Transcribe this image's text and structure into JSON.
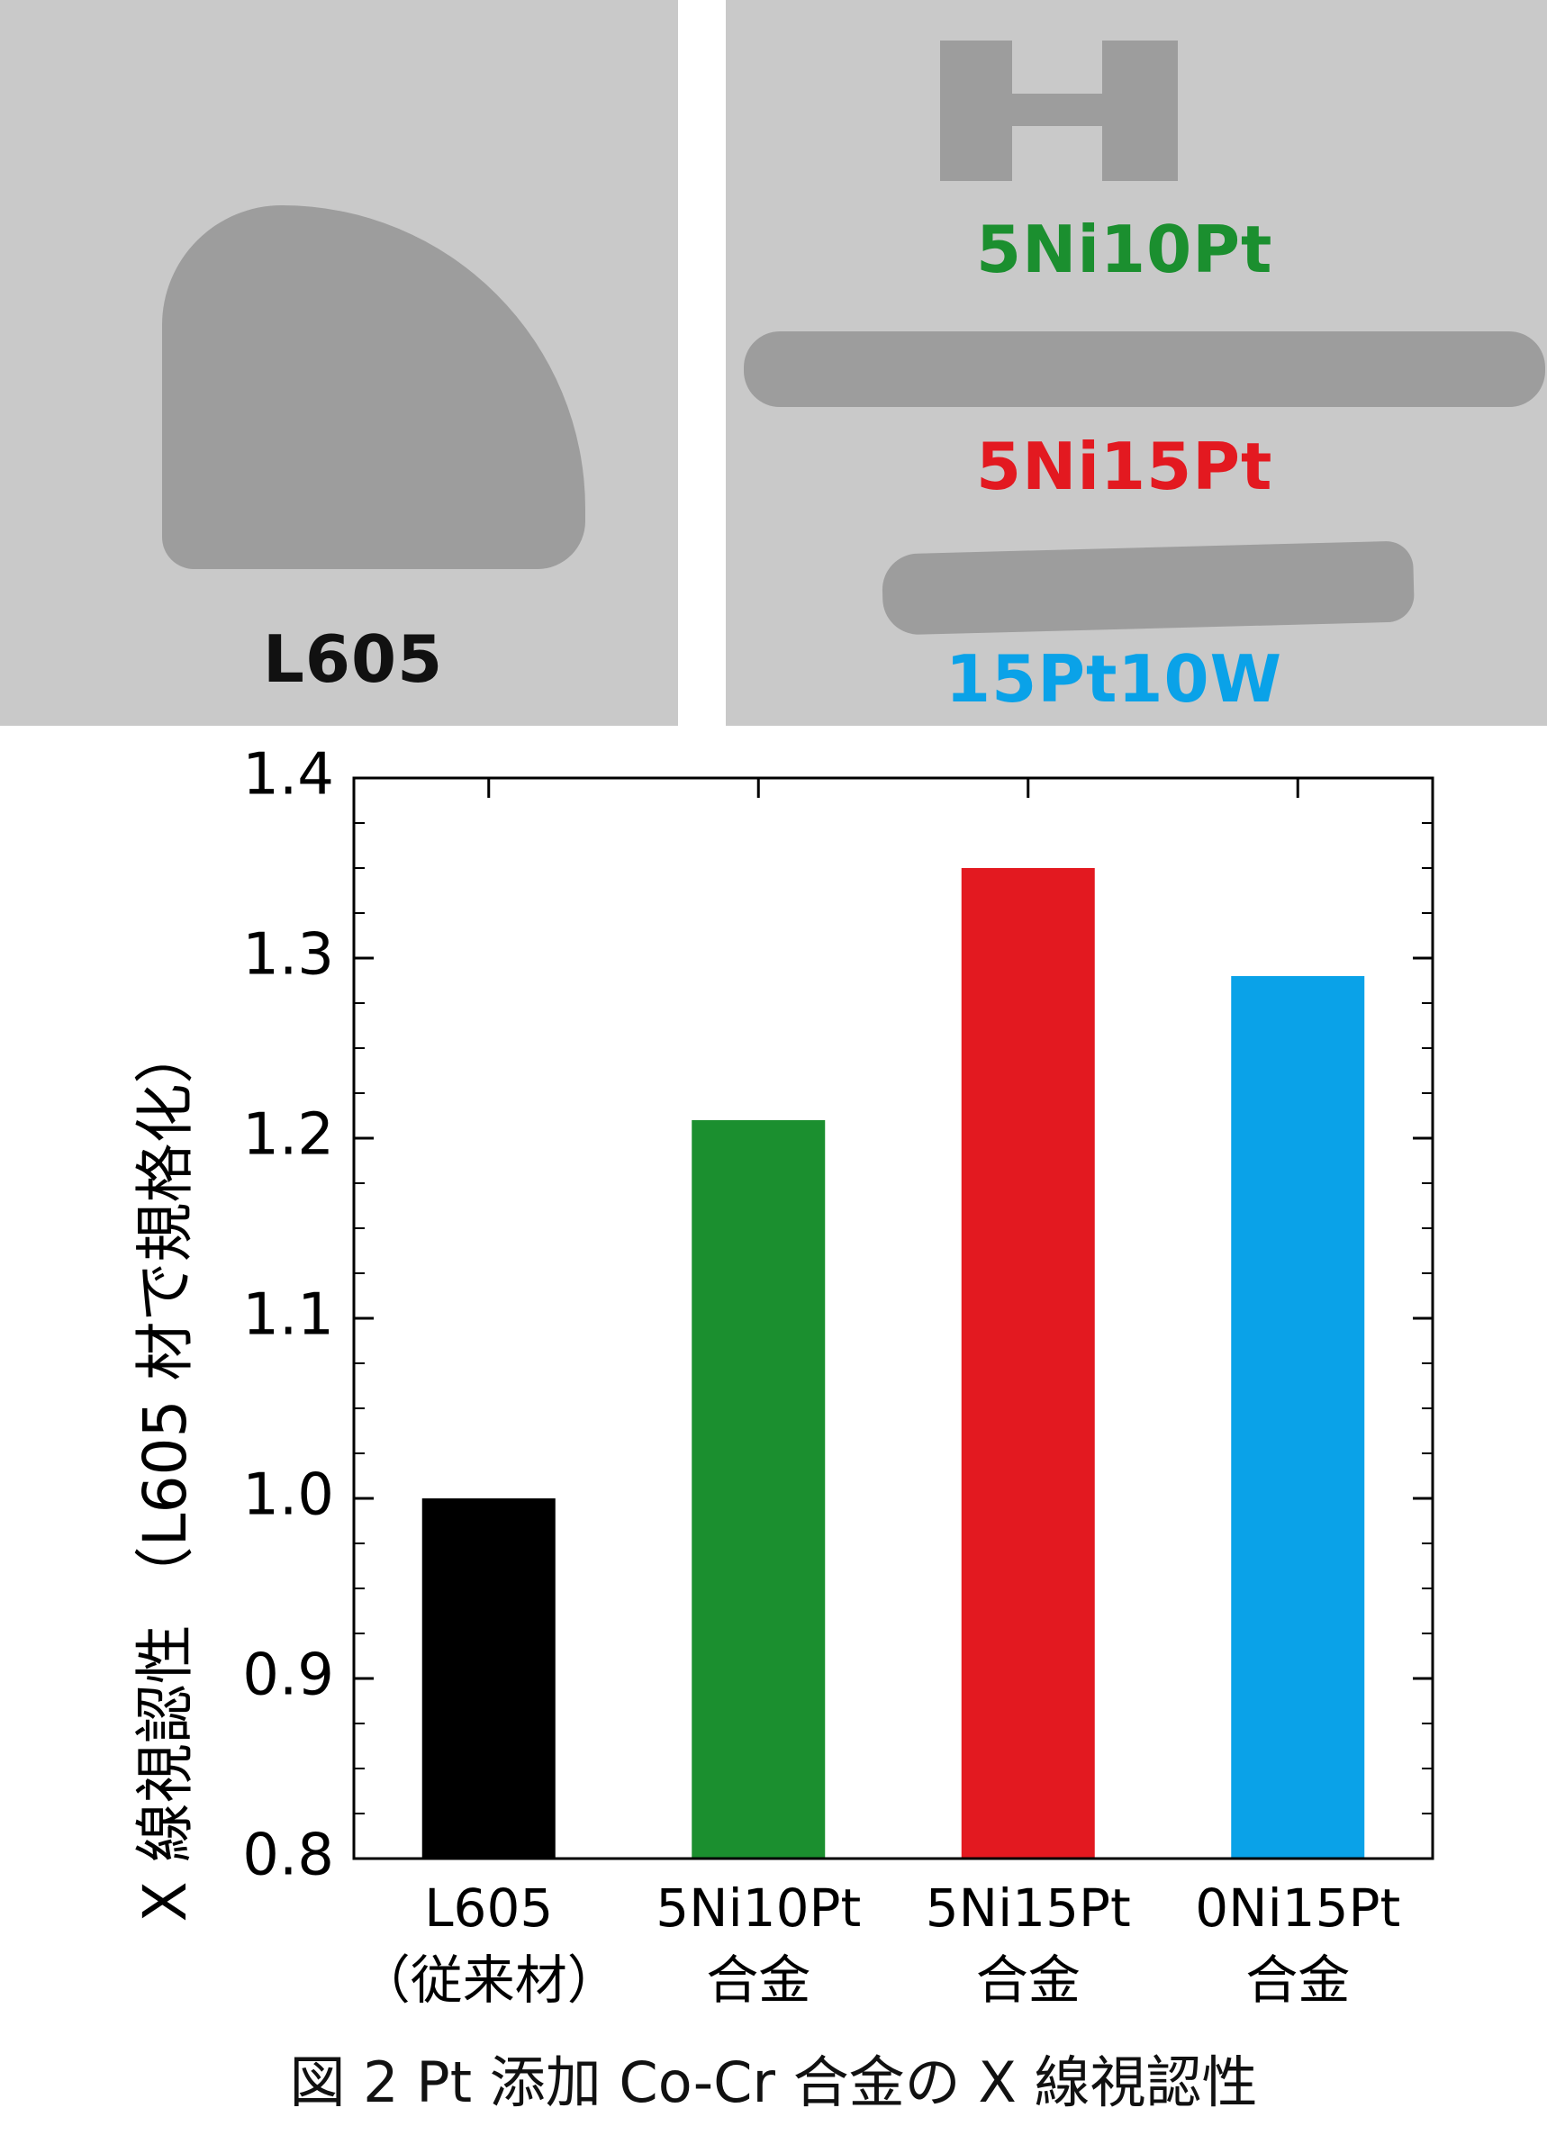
{
  "xray_panels": {
    "left": {
      "label": "L605",
      "label_color": "#111111"
    },
    "right": {
      "labels": [
        {
          "text": "5Ni10Pt",
          "color": "#1b8f2f"
        },
        {
          "text": "5Ni15Pt",
          "color": "#e31920"
        },
        {
          "text": "15Pt10W",
          "color": "#0aa2e8"
        }
      ]
    }
  },
  "caption": "図 2 Pt 添加 Co-Cr 合金の X 線視認性",
  "chart_data": {
    "type": "bar",
    "categories": [
      [
        "L605",
        "（従来材）"
      ],
      [
        "5Ni10Pt",
        "合金"
      ],
      [
        "5Ni15Pt",
        "合金"
      ],
      [
        "0Ni15Pt",
        "合金"
      ]
    ],
    "values": [
      1.0,
      1.21,
      1.35,
      1.29
    ],
    "colors": [
      "#000000",
      "#1b8f2f",
      "#e31920",
      "#0aa2e8"
    ],
    "ylabel": "X 線視認性 （L605 材で規格化）",
    "ylim": [
      0.8,
      1.4
    ],
    "yticks": [
      "0.8",
      "0.9",
      "1.0",
      "1.1",
      "1.2",
      "1.3",
      "1.4"
    ],
    "grid": false
  }
}
